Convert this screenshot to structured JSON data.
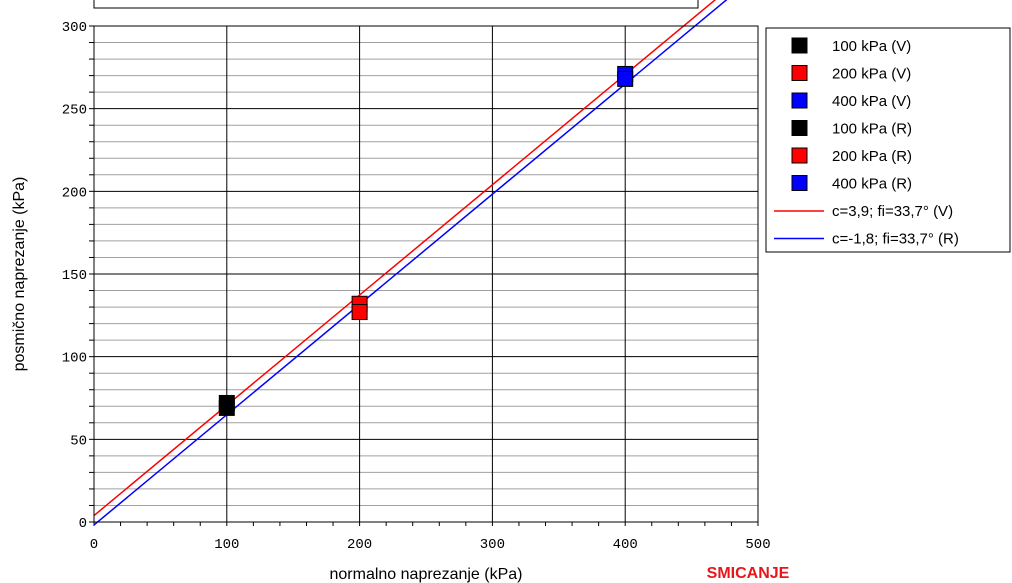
{
  "chart_data": {
    "type": "scatter",
    "title": "",
    "xlabel": "normalno naprezanje (kPa)",
    "ylabel": "posmično naprezanje (kPa)",
    "xlim": [
      0,
      500
    ],
    "ylim": [
      0,
      300
    ],
    "x_ticks": [
      "0",
      "100",
      "200",
      "300",
      "400",
      "500"
    ],
    "y_ticks": [
      "0",
      "50",
      "100",
      "150",
      "200",
      "250",
      "300"
    ],
    "grid": true,
    "legend_position": "right",
    "series": [
      {
        "name": "100 kPa (V)",
        "color": "#000000",
        "points": [
          [
            100,
            72
          ]
        ]
      },
      {
        "name": "200 kPa (V)",
        "color": "#ff0000",
        "points": [
          [
            200,
            132
          ]
        ]
      },
      {
        "name": "400 kPa (V)",
        "color": "#0000ff",
        "points": [
          [
            400,
            271
          ]
        ]
      },
      {
        "name": "100 kPa (R)",
        "color": "#000000",
        "points": [
          [
            100,
            69
          ]
        ]
      },
      {
        "name": "200 kPa (R)",
        "color": "#ff0000",
        "points": [
          [
            200,
            127
          ]
        ]
      },
      {
        "name": "400 kPa (R)",
        "color": "#0000ff",
        "points": [
          [
            400,
            268
          ]
        ]
      }
    ],
    "lines": [
      {
        "name": "c=3,9; fi=33,7° (V)",
        "color": "#ff0000",
        "intercept": 3.9,
        "slope": 0.6669
      },
      {
        "name": "c=-1,8; fi=33,7° (R)",
        "color": "#0000ff",
        "intercept": -1.8,
        "slope": 0.6669
      }
    ]
  },
  "footer_label": "SMICANJE",
  "footer_color": "#e8161a"
}
